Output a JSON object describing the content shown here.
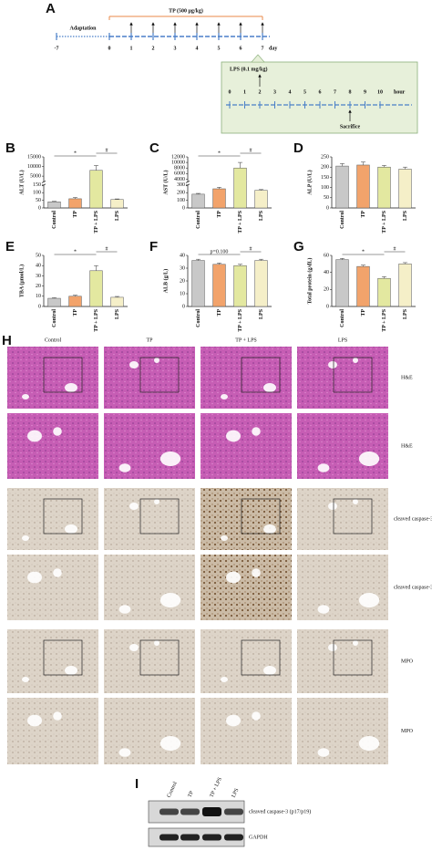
{
  "timeline": {
    "panel": "A",
    "adaptation": "Adaptation",
    "treatment": "TP (500 μg/kg)",
    "days": [
      -7,
      0,
      1,
      2,
      3,
      4,
      5,
      6,
      7
    ],
    "day_unit": "day",
    "lps": "LPS (0.1 mg/kg)",
    "hours": [
      0,
      1,
      2,
      3,
      4,
      5,
      6,
      7,
      8,
      9,
      10
    ],
    "hour_unit": "hour",
    "sacrifice": "Sacrifice"
  },
  "chart_data": [
    {
      "type": "bar",
      "panel": "B",
      "ylabel": "ALT (U/L)",
      "categories": [
        "Control",
        "TP",
        "TP + LPS",
        "LPS"
      ],
      "values": [
        40,
        60,
        8000,
        55
      ],
      "errors": [
        3,
        8,
        2500,
        4
      ],
      "colors": [
        "#c8c8c8",
        "#f2a36b",
        "#e3e8a0",
        "#f5efc8"
      ],
      "ylim": [
        0,
        15000
      ],
      "ybreak": [
        150,
        2000
      ],
      "yticks": [
        0,
        50,
        100,
        150,
        5000,
        10000,
        15000
      ],
      "annotations": [
        "*",
        "#"
      ]
    },
    {
      "type": "bar",
      "panel": "C",
      "ylabel": "AST (U/L)",
      "categories": [
        "Control",
        "TP",
        "TP + LPS",
        "LPS"
      ],
      "values": [
        180,
        250,
        8000,
        230
      ],
      "errors": [
        10,
        20,
        2000,
        10
      ],
      "colors": [
        "#c8c8c8",
        "#f2a36b",
        "#e3e8a0",
        "#f5efc8"
      ],
      "ylim": [
        0,
        12000
      ],
      "ybreak": [
        300,
        3000
      ],
      "yticks": [
        0,
        100,
        200,
        300,
        4000,
        6000,
        8000,
        10000,
        12000
      ],
      "annotations": [
        "*",
        "#"
      ]
    },
    {
      "type": "bar",
      "panel": "D",
      "ylabel": "ALP (U/L)",
      "categories": [
        "Control",
        "TP",
        "TP + LPS",
        "LPS"
      ],
      "values": [
        205,
        210,
        200,
        190
      ],
      "errors": [
        12,
        15,
        8,
        10
      ],
      "colors": [
        "#c8c8c8",
        "#f2a36b",
        "#e3e8a0",
        "#f5efc8"
      ],
      "ylim": [
        0,
        250
      ],
      "yticks": [
        0,
        50,
        100,
        150,
        200,
        250
      ],
      "annotations": []
    },
    {
      "type": "bar",
      "panel": "E",
      "ylabel": "TBA (μmol/L)",
      "categories": [
        "Control",
        "TP",
        "TP + LPS",
        "LPS"
      ],
      "values": [
        8,
        10,
        35,
        9
      ],
      "errors": [
        0.5,
        1,
        5,
        0.8
      ],
      "colors": [
        "#c8c8c8",
        "#f2a36b",
        "#e3e8a0",
        "#f5efc8"
      ],
      "ylim": [
        0,
        50
      ],
      "yticks": [
        0,
        10,
        20,
        30,
        40,
        50
      ],
      "annotations": [
        "*",
        "#"
      ]
    },
    {
      "type": "bar",
      "panel": "F",
      "ylabel": "ALB (g/L)",
      "categories": [
        "Control",
        "TP",
        "TP + LPS",
        "LPS"
      ],
      "values": [
        36,
        33,
        32,
        36
      ],
      "errors": [
        1,
        1,
        1,
        1
      ],
      "colors": [
        "#c8c8c8",
        "#f2a36b",
        "#e3e8a0",
        "#f5efc8"
      ],
      "ylim": [
        0,
        40
      ],
      "yticks": [
        0,
        10,
        20,
        30,
        40
      ],
      "annotations": [
        "p=0.100",
        "#"
      ]
    },
    {
      "type": "bar",
      "panel": "G",
      "ylabel": "Total protein (g/dL)",
      "categories": [
        "Control",
        "TP",
        "TP + LPS",
        "LPS"
      ],
      "values": [
        55,
        47,
        33,
        50
      ],
      "errors": [
        1.5,
        1.5,
        2,
        1.5
      ],
      "colors": [
        "#c8c8c8",
        "#f2a36b",
        "#e3e8a0",
        "#f5efc8"
      ],
      "ylim": [
        0,
        60
      ],
      "yticks": [
        0,
        20,
        40,
        60
      ],
      "annotations": [
        "*",
        "#"
      ]
    }
  ],
  "histology": {
    "panel": "H",
    "columns": [
      "Control",
      "TP",
      "TP + LPS",
      "LPS"
    ],
    "rows": [
      "H&E",
      "H&E",
      "cleaved caspase-3",
      "cleaved caspase-3",
      "MPO",
      "MPO"
    ]
  },
  "blot": {
    "panel": "I",
    "lanes": [
      "Control",
      "TP",
      "TP + LPS",
      "LPS"
    ],
    "proteins": [
      "cleaved caspase-3 (p17/p19)",
      "GAPDH"
    ]
  }
}
